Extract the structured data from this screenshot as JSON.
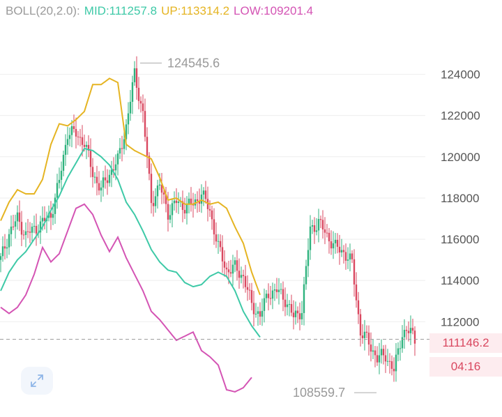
{
  "header": {
    "boll_label": "BOLL(20,2.0):",
    "mid_label": "MID:111257.8",
    "up_label": "UP:113314.2",
    "low_label": "LOW:109201.4"
  },
  "colors": {
    "boll": "#9a9a9a",
    "mid": "#3ec9a7",
    "up": "#e5b422",
    "low": "#d454b4",
    "bull": "#2db27d",
    "bear": "#d9475f",
    "grid": "#eeeeee",
    "axis_text": "#555555"
  },
  "price_markers": {
    "last_price": "111146.2",
    "countdown": "04:16"
  },
  "zoom_icon": "expand-arrows-icon",
  "chart_data": {
    "type": "candlestick",
    "indicator": "BOLL(20,2.0)",
    "y_ticks": [
      "124000",
      "122000",
      "120000",
      "118000",
      "116000",
      "114000",
      "112000"
    ],
    "y_tick_values": [
      124000,
      122000,
      120000,
      118000,
      116000,
      114000,
      112000
    ],
    "ylim": [
      107650,
      126250
    ],
    "x_count": 100,
    "max_label": "124545.6",
    "min_label": "108559.7",
    "last_price": 111146.2,
    "close_path": [
      [
        0,
        115000
      ],
      [
        4,
        116300
      ],
      [
        8,
        117000
      ],
      [
        12,
        116200
      ],
      [
        16,
        116500
      ],
      [
        20,
        116800
      ],
      [
        24,
        117200
      ],
      [
        28,
        118800
      ],
      [
        32,
        121200
      ],
      [
        36,
        121100
      ],
      [
        40,
        120700
      ],
      [
        44,
        119200
      ],
      [
        48,
        118400
      ],
      [
        52,
        119200
      ],
      [
        56,
        119800
      ],
      [
        60,
        121500
      ],
      [
        64,
        124000
      ],
      [
        68,
        122100
      ],
      [
        72,
        117800
      ],
      [
        76,
        118600
      ],
      [
        80,
        117300
      ],
      [
        84,
        117800
      ],
      [
        88,
        117600
      ],
      [
        92,
        117700
      ],
      [
        96,
        118200
      ],
      [
        100,
        117400
      ],
      [
        104,
        115600
      ],
      [
        108,
        114500
      ],
      [
        112,
        114600
      ],
      [
        116,
        114200
      ],
      [
        120,
        112800
      ],
      [
        124,
        112300
      ],
      [
        128,
        113400
      ],
      [
        132,
        113500
      ],
      [
        136,
        113100
      ],
      [
        140,
        112200
      ],
      [
        144,
        112600
      ],
      [
        148,
        116500
      ],
      [
        152,
        116800
      ],
      [
        156,
        116200
      ],
      [
        160,
        115600
      ],
      [
        164,
        115400
      ],
      [
        168,
        114800
      ],
      [
        172,
        111500
      ],
      [
        176,
        111000
      ],
      [
        180,
        110200
      ],
      [
        184,
        110400
      ],
      [
        188,
        109600
      ],
      [
        192,
        111500
      ],
      [
        196,
        111500
      ],
      [
        198,
        111150
      ]
    ],
    "up_path": [
      [
        0,
        116900
      ],
      [
        4,
        117800
      ],
      [
        8,
        118400
      ],
      [
        12,
        118200
      ],
      [
        16,
        118200
      ],
      [
        20,
        118900
      ],
      [
        24,
        120600
      ],
      [
        28,
        121600
      ],
      [
        32,
        121500
      ],
      [
        36,
        121800
      ],
      [
        40,
        122200
      ],
      [
        44,
        123500
      ],
      [
        48,
        123500
      ],
      [
        52,
        123800
      ],
      [
        56,
        123600
      ],
      [
        60,
        120600
      ],
      [
        64,
        120300
      ],
      [
        68,
        120100
      ],
      [
        72,
        119900
      ],
      [
        76,
        119000
      ],
      [
        80,
        117900
      ],
      [
        84,
        118000
      ],
      [
        88,
        117700
      ],
      [
        92,
        117700
      ],
      [
        96,
        117900
      ],
      [
        100,
        117700
      ],
      [
        104,
        117800
      ],
      [
        108,
        117500
      ],
      [
        112,
        116600
      ],
      [
        116,
        115800
      ],
      [
        120,
        114400
      ],
      [
        124,
        113300
      ]
    ],
    "mid_path": [
      [
        0,
        113500
      ],
      [
        4,
        114400
      ],
      [
        8,
        115000
      ],
      [
        12,
        115400
      ],
      [
        16,
        116000
      ],
      [
        20,
        116600
      ],
      [
        24,
        117400
      ],
      [
        28,
        118100
      ],
      [
        32,
        119000
      ],
      [
        36,
        119700
      ],
      [
        40,
        120400
      ],
      [
        44,
        120300
      ],
      [
        48,
        120000
      ],
      [
        52,
        119600
      ],
      [
        56,
        118900
      ],
      [
        60,
        117800
      ],
      [
        64,
        117200
      ],
      [
        68,
        116400
      ],
      [
        72,
        115500
      ],
      [
        76,
        114900
      ],
      [
        80,
        114500
      ],
      [
        84,
        114400
      ],
      [
        88,
        113900
      ],
      [
        92,
        113700
      ],
      [
        96,
        113800
      ],
      [
        100,
        114200
      ],
      [
        104,
        114400
      ],
      [
        108,
        114200
      ],
      [
        112,
        113500
      ],
      [
        116,
        112500
      ],
      [
        120,
        111800
      ],
      [
        124,
        111250
      ]
    ],
    "low_path": [
      [
        0,
        112700
      ],
      [
        4,
        112400
      ],
      [
        8,
        112700
      ],
      [
        12,
        113300
      ],
      [
        16,
        114300
      ],
      [
        20,
        115600
      ],
      [
        24,
        114900
      ],
      [
        28,
        115300
      ],
      [
        32,
        116400
      ],
      [
        36,
        117500
      ],
      [
        40,
        117700
      ],
      [
        44,
        117200
      ],
      [
        48,
        116200
      ],
      [
        52,
        115400
      ],
      [
        56,
        116100
      ],
      [
        60,
        115100
      ],
      [
        64,
        114300
      ],
      [
        68,
        113500
      ],
      [
        72,
        112500
      ],
      [
        76,
        112100
      ],
      [
        80,
        111600
      ],
      [
        84,
        111100
      ],
      [
        88,
        111300
      ],
      [
        92,
        111500
      ],
      [
        96,
        110600
      ],
      [
        100,
        110300
      ],
      [
        104,
        109900
      ],
      [
        108,
        108700
      ],
      [
        112,
        108600
      ],
      [
        116,
        108800
      ],
      [
        120,
        109300
      ]
    ]
  }
}
